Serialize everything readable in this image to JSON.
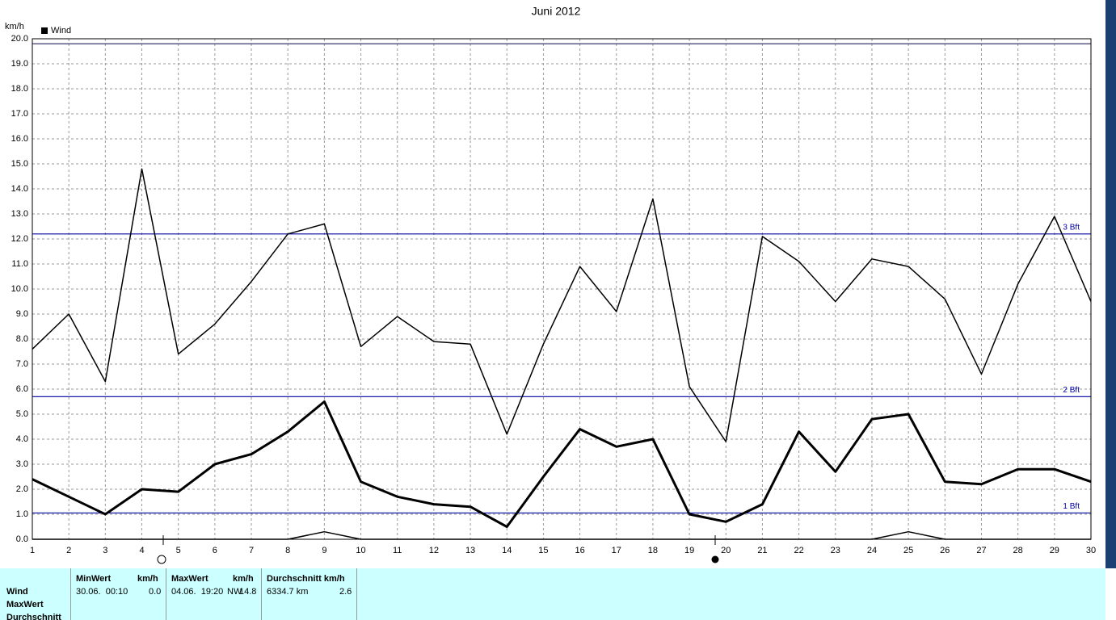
{
  "chart_data": {
    "type": "line",
    "title": "Juni 2012",
    "y_unit": "km/h",
    "legend": "Wind",
    "x": [
      1,
      2,
      3,
      4,
      5,
      6,
      7,
      8,
      9,
      10,
      11,
      12,
      13,
      14,
      15,
      16,
      17,
      18,
      19,
      20,
      21,
      22,
      23,
      24,
      25,
      26,
      27,
      28,
      29,
      30
    ],
    "series": [
      {
        "name": "Wind",
        "color": "#000000",
        "width": 3,
        "values": [
          2.4,
          1.7,
          1.0,
          2.0,
          1.9,
          3.0,
          3.4,
          4.3,
          5.5,
          2.3,
          1.7,
          1.4,
          1.3,
          0.5,
          2.5,
          4.4,
          3.7,
          4.0,
          1.0,
          0.7,
          1.4,
          4.3,
          2.7,
          4.8,
          5.0,
          2.3,
          2.2,
          2.8,
          2.8,
          2.3
        ]
      },
      {
        "color": "#000000",
        "width": 1.5,
        "values": [
          7.6,
          9.0,
          6.3,
          14.8,
          7.4,
          8.6,
          10.3,
          12.2,
          12.6,
          7.7,
          8.9,
          7.9,
          7.8,
          4.2,
          7.8,
          10.9,
          9.1,
          13.6,
          6.1,
          3.9,
          12.1,
          11.1,
          9.5,
          11.2,
          10.9,
          9.6,
          6.6,
          10.2,
          12.9,
          9.5
        ]
      },
      {
        "color": "#000000",
        "width": 1.5,
        "values": [
          0,
          0,
          0,
          0,
          0,
          0,
          0,
          0,
          0.3,
          0,
          0,
          0,
          0,
          0,
          0,
          0,
          0,
          0,
          0,
          0,
          0,
          0,
          0,
          0,
          0.3,
          0,
          0,
          0,
          0,
          0
        ]
      }
    ],
    "ref_lines": [
      {
        "value": 19.8,
        "color": "#202060"
      },
      {
        "value": 12.2,
        "label": "3 Bft",
        "color": "#0000a0"
      },
      {
        "value": 5.7,
        "label": "2 Bft",
        "color": "#0000a0"
      },
      {
        "value": 1.05,
        "label": "1 Bft",
        "color": "#0000a0"
      }
    ],
    "xlim": [
      1,
      30
    ],
    "xticks": [
      1,
      2,
      3,
      4,
      5,
      6,
      7,
      8,
      9,
      10,
      11,
      12,
      13,
      14,
      15,
      16,
      17,
      18,
      19,
      20,
      21,
      22,
      23,
      24,
      25,
      26,
      27,
      28,
      29,
      30
    ],
    "ylim": [
      0,
      20
    ],
    "yticks": [
      {
        "value": 0,
        "label": "0.0"
      },
      {
        "value": 1,
        "label": "1.0"
      },
      {
        "value": 2,
        "label": "2.0"
      },
      {
        "value": 3,
        "label": "3.0"
      },
      {
        "value": 4,
        "label": "4.0"
      },
      {
        "value": 5,
        "label": "5.0"
      },
      {
        "value": 6,
        "label": "6.0"
      },
      {
        "value": 7,
        "label": "7.0"
      },
      {
        "value": 8,
        "label": "8.0"
      },
      {
        "value": 9,
        "label": "9.0"
      },
      {
        "value": 10,
        "label": "10.0"
      },
      {
        "value": 11,
        "label": "11.0"
      },
      {
        "value": 12,
        "label": "12.0"
      },
      {
        "value": 13,
        "label": "13.0"
      },
      {
        "value": 14,
        "label": "14.0"
      },
      {
        "value": 15,
        "label": "15.0"
      },
      {
        "value": 16,
        "label": "16.0"
      },
      {
        "value": 17,
        "label": "17.0"
      },
      {
        "value": 18,
        "label": "18.0"
      },
      {
        "value": 19,
        "label": "19.0"
      },
      {
        "value": 20,
        "label": "20.0"
      }
    ],
    "grid": true
  },
  "stats": {
    "row_labels": [
      "Wind",
      "MaxWert",
      "Durchschnitt"
    ],
    "min": {
      "header": "MinWert",
      "unit": "km/h",
      "time": "30.06.  00:10",
      "value": "0.0"
    },
    "max": {
      "header": "MaxWert",
      "unit": "km/h",
      "time": "04.06.  19:20",
      "direction": "NW",
      "value": "14.8"
    },
    "avg": {
      "header": "Durchschnitt km/h",
      "distance": "6334.7 km",
      "value": "2.6"
    }
  }
}
